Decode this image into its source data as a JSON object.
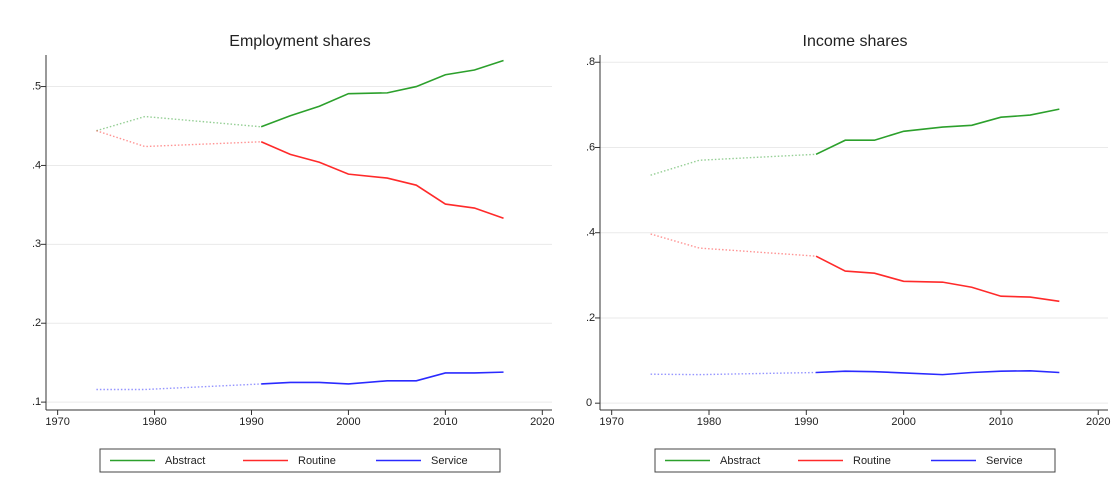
{
  "chart_data": [
    {
      "type": "line",
      "title": "Employment shares",
      "x": [
        1974,
        1979,
        1991,
        1994,
        1997,
        2000,
        2004,
        2007,
        2010,
        2013,
        2016
      ],
      "series": [
        {
          "name": "Abstract",
          "color": "#2ca02c",
          "values": [
            0.444,
            0.462,
            0.449,
            0.463,
            0.475,
            0.491,
            0.492,
            0.5,
            0.515,
            0.521,
            0.533
          ]
        },
        {
          "name": "Routine",
          "color": "#ff2a2a",
          "values": [
            0.444,
            0.424,
            0.43,
            0.414,
            0.404,
            0.389,
            0.384,
            0.375,
            0.351,
            0.346,
            0.333
          ]
        },
        {
          "name": "Service",
          "color": "#2a2aff",
          "values": [
            0.116,
            0.116,
            0.123,
            0.125,
            0.125,
            0.123,
            0.127,
            0.127,
            0.137,
            0.137,
            0.138
          ]
        }
      ],
      "dotted_until_x": 1991,
      "xlim": [
        1968.8,
        2021
      ],
      "xticks": [
        1970,
        1980,
        1990,
        2000,
        2010,
        2020
      ],
      "ylim": [
        0.09,
        0.54
      ],
      "yticks": [
        {
          "value": 0.1,
          "label": ".1"
        },
        {
          "value": 0.2,
          "label": ".2"
        },
        {
          "value": 0.3,
          "label": ".3"
        },
        {
          "value": 0.4,
          "label": ".4"
        },
        {
          "value": 0.5,
          "label": ".5"
        }
      ],
      "grid": true,
      "legend": "bottom"
    },
    {
      "type": "line",
      "title": "Income shares",
      "x": [
        1974,
        1979,
        1991,
        1994,
        1997,
        2000,
        2004,
        2007,
        2010,
        2013,
        2016
      ],
      "series": [
        {
          "name": "Abstract",
          "color": "#2ca02c",
          "values": [
            0.535,
            0.57,
            0.584,
            0.617,
            0.617,
            0.638,
            0.648,
            0.652,
            0.671,
            0.676,
            0.69
          ]
        },
        {
          "name": "Routine",
          "color": "#ff2a2a",
          "values": [
            0.397,
            0.364,
            0.345,
            0.31,
            0.305,
            0.286,
            0.284,
            0.272,
            0.251,
            0.249,
            0.239
          ]
        },
        {
          "name": "Service",
          "color": "#2a2aff",
          "values": [
            0.068,
            0.067,
            0.072,
            0.075,
            0.074,
            0.071,
            0.067,
            0.072,
            0.075,
            0.076,
            0.072
          ]
        }
      ],
      "dotted_until_x": 1991,
      "xlim": [
        1968.8,
        2021
      ],
      "xticks": [
        1970,
        1980,
        1990,
        2000,
        2010,
        2020
      ],
      "ylim": [
        -0.016,
        0.817
      ],
      "yticks": [
        0,
        {
          "value": 0.2,
          "label": ".2"
        },
        {
          "value": 0.4,
          "label": ".4"
        },
        {
          "value": 0.6,
          "label": ".6"
        },
        {
          "value": 0.8,
          "label": ".8"
        }
      ],
      "grid": true,
      "legend": "bottom"
    }
  ]
}
